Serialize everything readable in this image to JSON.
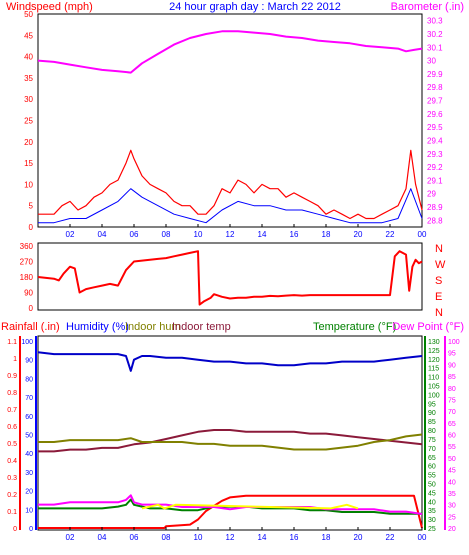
{
  "colors": {
    "bg": "#ffffff",
    "frame": "#000000",
    "wind_axis": "#ff0000",
    "baro_axis": "#ff00ff",
    "humidity_axis": "#0000ff",
    "temp_axis": "#008000",
    "xtick": "#0000ff",
    "gust": "#ff0000",
    "avg_wind": "#0000ff",
    "barometer": "#ff00ff",
    "direction": "#ff0000",
    "humidity": "#0000c8",
    "indoor_temp": "#8b1a3a",
    "indoor_hum": "#808000",
    "rainfall": "#ff0000",
    "temperature": "#008000",
    "dewpoint": "#ff00ff",
    "solar": "#ffff00"
  },
  "chart_data": [
    {
      "id": "wind-baro",
      "type": "line",
      "title": "24 hour graph day : March 22 2012",
      "y_left_label": "Windspeed (mph)",
      "y_right_label": "Barometer (.in)",
      "x_ticks": [
        "02",
        "04",
        "06",
        "08",
        "10",
        "12",
        "14",
        "16",
        "18",
        "20",
        "22",
        "00"
      ],
      "y_left_ticks": [
        "0",
        "5",
        "10",
        "15",
        "20",
        "25",
        "30",
        "35",
        "40",
        "45",
        "50"
      ],
      "y_left_range": [
        0,
        50
      ],
      "y_right_ticks": [
        "28.8",
        "28.9",
        "29",
        "29.1",
        "29.2",
        "29.3",
        "29.4",
        "29.5",
        "29.6",
        "29.7",
        "29.8",
        "29.9",
        "30",
        "30.1",
        "30.2",
        "30.3"
      ],
      "y_right_range": [
        28.75,
        30.35
      ],
      "x_range_hours": [
        0,
        24
      ],
      "series": [
        {
          "key": "gust",
          "color_key": "gust",
          "x": [
            0,
            1,
            1.5,
            2,
            2.5,
            3,
            3.5,
            4,
            4.5,
            5,
            5.5,
            5.8,
            6,
            6.5,
            7,
            7.5,
            8,
            8.5,
            9,
            9.5,
            10,
            10.5,
            11,
            11.5,
            12,
            12.5,
            13,
            13.5,
            14,
            14.5,
            15,
            15.5,
            16,
            16.5,
            17,
            17.5,
            18,
            18.5,
            19,
            19.5,
            20,
            20.5,
            21,
            21.5,
            22,
            22.5,
            23,
            23.3,
            23.6,
            24
          ],
          "values": [
            3,
            3,
            5,
            6,
            4,
            5,
            7,
            8,
            10,
            11,
            15,
            18,
            16,
            12,
            10,
            9,
            8,
            6,
            5,
            5,
            3,
            3,
            5,
            9,
            8,
            11,
            10,
            8,
            10,
            9,
            9,
            7,
            8,
            7,
            6,
            5,
            3,
            4,
            3,
            2,
            3,
            2,
            2,
            3,
            4,
            5,
            9,
            18,
            10,
            4
          ]
        },
        {
          "key": "avg_wind",
          "color_key": "avg_wind",
          "x": [
            0,
            1,
            2,
            3,
            4,
            5,
            5.8,
            6.5,
            7.5,
            8.5,
            9.5,
            10.5,
            11.5,
            12.5,
            13.5,
            14.5,
            15.5,
            16.5,
            17.5,
            18.5,
            19.5,
            20.5,
            21.5,
            22.5,
            23.3,
            24
          ],
          "values": [
            1,
            1,
            2,
            2,
            4,
            6,
            9,
            7,
            5,
            3,
            2,
            1,
            4,
            6,
            5,
            5,
            4,
            4,
            3,
            2,
            1,
            1,
            1,
            2,
            9,
            2
          ]
        },
        {
          "key": "barometer",
          "color_key": "barometer",
          "axis": "right",
          "x": [
            0,
            1,
            2,
            3,
            4,
            5,
            5.8,
            6.5,
            7.5,
            8.5,
            9.5,
            10.5,
            11.5,
            12.5,
            13.5,
            14.5,
            15.5,
            16.5,
            17.5,
            18.5,
            19.5,
            20.5,
            21.5,
            22.5,
            23,
            23.5,
            24
          ],
          "values": [
            30.0,
            29.99,
            29.97,
            29.95,
            29.93,
            29.92,
            29.91,
            29.98,
            30.05,
            30.12,
            30.17,
            30.2,
            30.22,
            30.22,
            30.21,
            30.2,
            30.18,
            30.17,
            30.15,
            30.14,
            30.13,
            30.11,
            30.1,
            30.09,
            30.07,
            30.08,
            30.09
          ]
        }
      ]
    },
    {
      "id": "direction",
      "type": "line",
      "y_left_ticks": [
        "0",
        "90",
        "180",
        "270",
        "360"
      ],
      "y_left_range": [
        0,
        360
      ],
      "y_right_labels": [
        "N",
        "W",
        "S",
        "E",
        "N"
      ],
      "x_ticks": [
        "02",
        "04",
        "06",
        "08",
        "10",
        "12",
        "14",
        "16",
        "18",
        "20",
        "22",
        "00"
      ],
      "series": [
        {
          "key": "direction",
          "color_key": "direction",
          "x": [
            0,
            0.5,
            1,
            1.3,
            1.6,
            2,
            2.3,
            2.6,
            3,
            3.5,
            4,
            4.5,
            5,
            5.5,
            5.8,
            6,
            6.5,
            7,
            7.5,
            8,
            8.5,
            9,
            9.5,
            10,
            10.1,
            10.4,
            10.8,
            11,
            11.5,
            12,
            12.5,
            13,
            13.5,
            14,
            14.5,
            15,
            15.5,
            16,
            16.5,
            17,
            17.5,
            18,
            18.5,
            19,
            19.5,
            20,
            20.5,
            21,
            21.5,
            22,
            22.3,
            22.6,
            23,
            23.2,
            23.4,
            23.6,
            23.8,
            24
          ],
          "values": [
            180,
            175,
            170,
            160,
            200,
            240,
            230,
            90,
            110,
            120,
            130,
            140,
            130,
            220,
            250,
            270,
            275,
            280,
            285,
            290,
            300,
            310,
            320,
            330,
            20,
            40,
            60,
            80,
            65,
            55,
            60,
            60,
            65,
            65,
            70,
            68,
            72,
            75,
            72,
            75,
            75,
            75,
            75,
            75,
            75,
            75,
            75,
            75,
            75,
            75,
            300,
            330,
            310,
            100,
            240,
            280,
            260,
            270
          ]
        }
      ]
    },
    {
      "id": "hum-temp",
      "type": "line",
      "y_left_labels": [
        "Rainfall (.in)",
        "Humidity (%)",
        "Indoor hum",
        "Indoor temp"
      ],
      "y_right_labels": [
        "Temperature (°F)",
        "Dew Point (°F)"
      ],
      "y_rain_ticks": [
        "0",
        "0.1",
        "0.2",
        "0.3",
        "0.4",
        "0.5",
        "0.6",
        "0.7",
        "0.8",
        "0.9",
        "1",
        "1.1"
      ],
      "y_rain_range": [
        0,
        1.1
      ],
      "y_hum_ticks": [
        "0",
        "10",
        "20",
        "30",
        "40",
        "50",
        "60",
        "70",
        "80",
        "90",
        "100"
      ],
      "y_hum_range": [
        0,
        100
      ],
      "y_temp_ticks": [
        "25",
        "30",
        "35",
        "40",
        "45",
        "50",
        "55",
        "60",
        "65",
        "70",
        "75",
        "80",
        "85",
        "90",
        "95",
        "100",
        "105",
        "110",
        "115",
        "120",
        "125",
        "130"
      ],
      "y_temp_range": [
        25,
        130
      ],
      "y_dew_ticks": [
        "20",
        "25",
        "30",
        "35",
        "40",
        "45",
        "50",
        "55",
        "60",
        "65",
        "70",
        "75",
        "80",
        "85",
        "90",
        "95",
        "100"
      ],
      "y_dew_range": [
        20,
        100
      ],
      "x_ticks": [
        "02",
        "04",
        "06",
        "08",
        "10",
        "12",
        "14",
        "16",
        "18",
        "20",
        "22",
        "00"
      ],
      "series": [
        {
          "key": "humidity",
          "color_key": "humidity",
          "axis": "hum",
          "x": [
            0,
            1,
            2,
            3,
            4,
            5,
            5.5,
            5.8,
            6,
            6.5,
            7,
            8,
            9,
            10,
            11,
            12,
            13,
            14,
            15,
            16,
            17,
            18,
            19,
            20,
            21,
            22,
            23,
            24
          ],
          "values": [
            94,
            93,
            93,
            93,
            93,
            93,
            92,
            84,
            90,
            92,
            92,
            91,
            91,
            90,
            89,
            89,
            88,
            88,
            87,
            87,
            88,
            88,
            89,
            89,
            89,
            90,
            91,
            92
          ]
        },
        {
          "key": "indoor_temp",
          "color_key": "indoor_temp",
          "axis": "temp",
          "x": [
            0,
            1,
            2,
            3,
            4,
            5,
            6,
            7,
            8,
            9,
            10,
            11,
            12,
            13,
            14,
            15,
            16,
            17,
            18,
            19,
            20,
            21,
            22,
            23,
            24
          ],
          "values": [
            68,
            68,
            69,
            69,
            70,
            70,
            72,
            73,
            75,
            77,
            79,
            80,
            80,
            79,
            79,
            79,
            79,
            78,
            78,
            77,
            76,
            75,
            74,
            73,
            72
          ]
        },
        {
          "key": "indoor_hum",
          "color_key": "indoor_hum",
          "axis": "hum",
          "x": [
            0,
            1,
            2,
            3,
            4,
            5,
            5.8,
            6.5,
            7,
            8,
            9,
            10,
            11,
            12,
            13,
            14,
            15,
            16,
            17,
            18,
            19,
            20,
            21,
            22,
            23,
            24
          ],
          "values": [
            46,
            46,
            47,
            47,
            47,
            47,
            48,
            46,
            46,
            46,
            46,
            45,
            45,
            44,
            44,
            44,
            43,
            42,
            42,
            42,
            43,
            44,
            46,
            47,
            49,
            50
          ]
        },
        {
          "key": "rainfall",
          "color_key": "rainfall",
          "axis": "rain",
          "x": [
            0,
            7.9,
            8,
            9.5,
            10,
            10.5,
            11,
            11.5,
            12,
            13,
            14,
            23,
            23.5,
            24
          ],
          "values": [
            0.0,
            0.0,
            0.01,
            0.02,
            0.05,
            0.1,
            0.13,
            0.16,
            0.18,
            0.19,
            0.19,
            0.19,
            0.19,
            0.0
          ]
        },
        {
          "key": "temperature",
          "color_key": "temperature",
          "axis": "temp",
          "x": [
            0,
            1,
            2,
            3,
            4,
            5,
            5.5,
            5.8,
            6,
            6.5,
            7,
            8,
            9,
            10,
            11,
            12,
            13,
            14,
            15,
            16,
            17,
            18,
            19,
            20,
            21,
            22,
            23,
            24
          ],
          "values": [
            36,
            36,
            36,
            36,
            36,
            37,
            38,
            41,
            38,
            37,
            36,
            36,
            35,
            35,
            37,
            37,
            37,
            36,
            36,
            36,
            35,
            35,
            34,
            34,
            34,
            33,
            33,
            33
          ]
        },
        {
          "key": "dewpoint",
          "color_key": "dewpoint",
          "axis": "dew",
          "x": [
            0,
            1,
            2,
            3,
            4,
            5,
            5.5,
            5.8,
            6,
            6.5,
            7,
            8,
            9,
            10,
            11,
            12,
            13,
            14,
            15,
            16,
            17,
            18,
            19,
            20,
            21,
            22,
            23,
            24
          ],
          "values": [
            30,
            30,
            31,
            31,
            31,
            31,
            32,
            34,
            31,
            30,
            30,
            30,
            29,
            29,
            29,
            28,
            29,
            29,
            29,
            29,
            29,
            28,
            28,
            28,
            28,
            27,
            27,
            26
          ]
        },
        {
          "key": "solar",
          "color_key": "solar",
          "axis": "temp",
          "x": [
            6.5,
            7.5,
            7.9,
            8.6,
            18.3,
            19.3,
            20.0
          ],
          "values": [
            36,
            38,
            36,
            38,
            36,
            38,
            36
          ]
        }
      ]
    }
  ]
}
